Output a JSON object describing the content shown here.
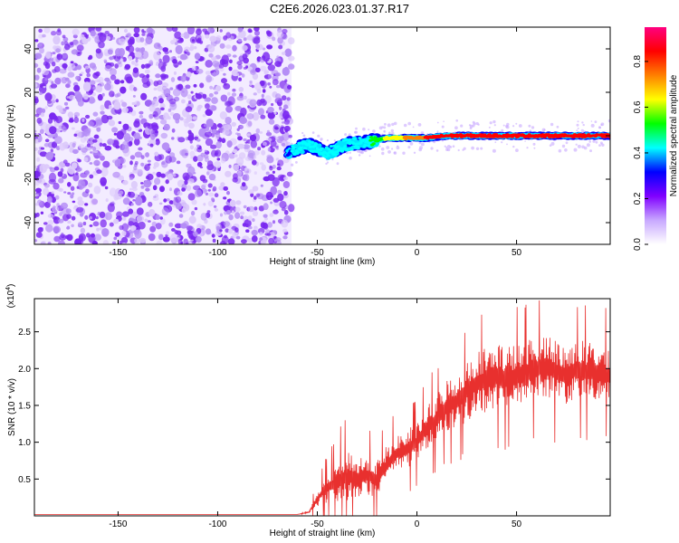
{
  "title": "C2E6.2026.023.01.37.R17",
  "chart_data": [
    {
      "type": "heatmap",
      "title": "C2E6.2026.023.01.37.R17",
      "xlabel": "Height of straight line (km)",
      "ylabel": "Frequency (Hz)",
      "xlim": [
        -192,
        97
      ],
      "ylim": [
        -50,
        50
      ],
      "xticks": [
        -150,
        -100,
        -50,
        0,
        50
      ],
      "xtick_labels": [
        "-150",
        "-100",
        "-50",
        "0",
        "50"
      ],
      "yticks": [
        -40,
        -20,
        0,
        20,
        40
      ],
      "ytick_labels": [
        "-40",
        "-20",
        "0",
        "20",
        "40"
      ],
      "colorbar": {
        "label": "Normalized spectral amplitude",
        "range": [
          0,
          0.95
        ],
        "ticks": [
          0.0,
          0.2,
          0.4,
          0.6,
          0.8
        ],
        "tick_labels": [
          "0.0",
          "0.2",
          "0.4",
          "0.6",
          "0.8"
        ],
        "colors": [
          "#ffffff",
          "#c8a8ff",
          "#8000ff",
          "#0000ff",
          "#00ffff",
          "#00ff00",
          "#ffff00",
          "#ff8000",
          "#ff0000",
          "#ff0080"
        ]
      },
      "noise_region": {
        "x_range": [
          -192,
          -63
        ],
        "y_range": [
          -50,
          50
        ],
        "color": "#7a28f0"
      },
      "signal_track": {
        "x": [
          -65,
          -55,
          -45,
          -35,
          -25,
          -15,
          -5,
          5,
          15,
          30,
          50,
          70,
          97
        ],
        "y": [
          -8,
          -4,
          -8,
          -4,
          -3,
          -1,
          -1,
          -1,
          0,
          0,
          0,
          0,
          0
        ],
        "amplitude": [
          0.35,
          0.45,
          0.45,
          0.4,
          0.45,
          0.6,
          0.7,
          0.8,
          0.85,
          0.8,
          0.85,
          0.85,
          0.85
        ]
      }
    },
    {
      "type": "line",
      "xlabel": "Height of straight line (km)",
      "ylabel": "SNR (10 * v/v)",
      "yscale_label": "(x10",
      "yscale_exp": "4",
      "yscale_close": ")",
      "xlim": [
        -192,
        97
      ],
      "ylim": [
        0,
        2.95
      ],
      "xticks": [
        -150,
        -100,
        -50,
        0,
        50
      ],
      "xtick_labels": [
        "-150",
        "-100",
        "-50",
        "0",
        "50"
      ],
      "yticks": [
        0.5,
        1.0,
        1.5,
        2.0,
        2.5
      ],
      "ytick_labels": [
        "0.5",
        "1.0",
        "1.5",
        "2.0",
        "2.5"
      ],
      "color": "#e8302e",
      "series": [
        {
          "name": "SNR",
          "x": [
            -192,
            -60,
            -54,
            -52,
            -48,
            -44,
            -40,
            -35,
            -30,
            -25,
            -20,
            -15,
            -10,
            -5,
            0,
            5,
            10,
            15,
            20,
            25,
            30,
            35,
            40,
            45,
            50,
            55,
            60,
            65,
            70,
            75,
            80,
            85,
            90,
            97
          ],
          "y": [
            0.02,
            0.02,
            0.05,
            0.15,
            0.3,
            0.4,
            0.45,
            0.55,
            0.5,
            0.55,
            0.5,
            0.7,
            0.85,
            0.9,
            1.0,
            1.2,
            1.3,
            1.5,
            1.55,
            1.7,
            1.8,
            1.85,
            1.9,
            1.85,
            1.9,
            1.95,
            2.0,
            2.05,
            1.95,
            1.9,
            2.0,
            1.95,
            1.95,
            1.9
          ],
          "spread": [
            0,
            0,
            0.03,
            0.15,
            0.3,
            0.45,
            0.6,
            0.8,
            0.6,
            0.6,
            0.5,
            0.55,
            0.5,
            0.55,
            0.55,
            0.6,
            0.7,
            0.7,
            0.8,
            0.85,
            0.9,
            0.9,
            1.0,
            0.9,
            0.9,
            0.9,
            0.85,
            0.9,
            0.9,
            0.85,
            0.85,
            0.85,
            0.8,
            0.85
          ]
        }
      ]
    }
  ]
}
